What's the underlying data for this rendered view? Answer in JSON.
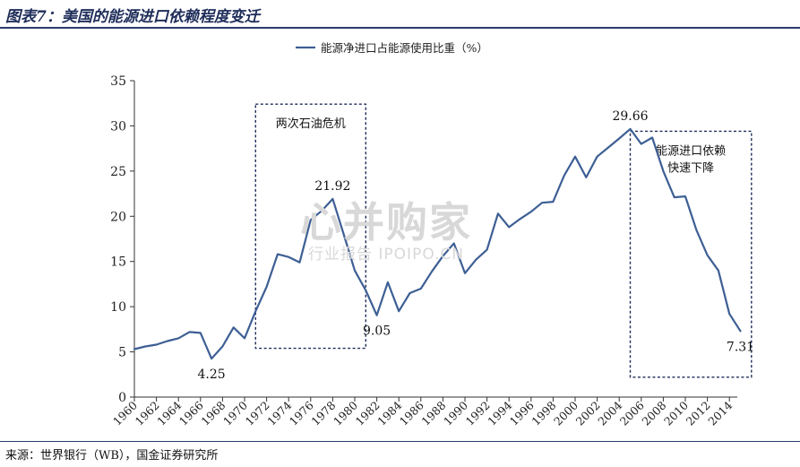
{
  "figure": {
    "title": "图表7：美国的能源进口依赖程度变迁",
    "source": "来源：世界银行（WB），国金证券研究所"
  },
  "watermark": {
    "main": "心并购家",
    "sub": "行业报告 IPOIPO.CN"
  },
  "colors": {
    "line": "#3d5f94",
    "axis": "#333333",
    "box": "#1f2d5a",
    "title": "#1f2d5a"
  },
  "chart_data": {
    "type": "line",
    "title": "",
    "xlabel": "",
    "ylabel": "",
    "ylim": [
      0,
      35
    ],
    "yticks": [
      0,
      5,
      10,
      15,
      20,
      25,
      30,
      35
    ],
    "xlim": [
      1960,
      2014
    ],
    "xticks": [
      1960,
      1962,
      1964,
      1966,
      1968,
      1970,
      1972,
      1974,
      1976,
      1978,
      1980,
      1982,
      1984,
      1986,
      1988,
      1990,
      1992,
      1994,
      1996,
      1998,
      2000,
      2002,
      2004,
      2006,
      2008,
      2010,
      2012,
      2014
    ],
    "legend": {
      "position": "top-center",
      "label": "能源净进口占能源使用比重（%）"
    },
    "grid": false,
    "series": [
      {
        "name": "能源净进口占能源使用比重（%）",
        "x": [
          1960,
          1961,
          1962,
          1963,
          1964,
          1965,
          1966,
          1967,
          1968,
          1969,
          1970,
          1971,
          1972,
          1973,
          1974,
          1975,
          1976,
          1977,
          1978,
          1979,
          1980,
          1981,
          1982,
          1983,
          1984,
          1985,
          1986,
          1987,
          1988,
          1989,
          1990,
          1991,
          1992,
          1993,
          1994,
          1995,
          1996,
          1997,
          1998,
          1999,
          2000,
          2001,
          2002,
          2003,
          2004,
          2005,
          2006,
          2007,
          2008,
          2009,
          2010,
          2011,
          2012,
          2013,
          2014,
          2015
        ],
        "values": [
          5.3,
          5.6,
          5.8,
          6.2,
          6.5,
          7.2,
          7.1,
          4.25,
          5.6,
          7.7,
          6.5,
          9.5,
          12.2,
          15.8,
          15.5,
          14.9,
          19.6,
          20.6,
          21.92,
          18.0,
          14.0,
          11.8,
          9.05,
          12.7,
          9.5,
          11.5,
          12.0,
          13.9,
          15.6,
          17.0,
          13.7,
          15.2,
          16.3,
          20.3,
          18.8,
          19.7,
          20.5,
          21.5,
          21.6,
          24.5,
          26.6,
          24.3,
          26.6,
          27.6,
          28.6,
          29.66,
          28.0,
          28.7,
          25.0,
          22.1,
          22.2,
          18.5,
          15.7,
          14.0,
          9.2,
          7.31
        ]
      }
    ],
    "annotations": [
      {
        "text": "4.25",
        "x": 1967,
        "y": 4.25,
        "position": "below"
      },
      {
        "text": "21.92",
        "x": 1978,
        "y": 21.92,
        "position": "above"
      },
      {
        "text": "9.05",
        "x": 1982,
        "y": 9.05,
        "position": "below"
      },
      {
        "text": "29.66",
        "x": 2005,
        "y": 29.66,
        "position": "above"
      },
      {
        "text": "7.31",
        "x": 2015,
        "y": 7.31,
        "position": "below"
      }
    ],
    "boxes": [
      {
        "label": "两次石油危机",
        "x_range": [
          1971,
          1981
        ],
        "y_range": [
          5.4,
          32.4
        ]
      },
      {
        "label_lines": [
          "能源进口依赖",
          "快速下降"
        ],
        "x_range": [
          2005,
          2016
        ],
        "y_range": [
          2.2,
          29.4
        ]
      }
    ]
  }
}
